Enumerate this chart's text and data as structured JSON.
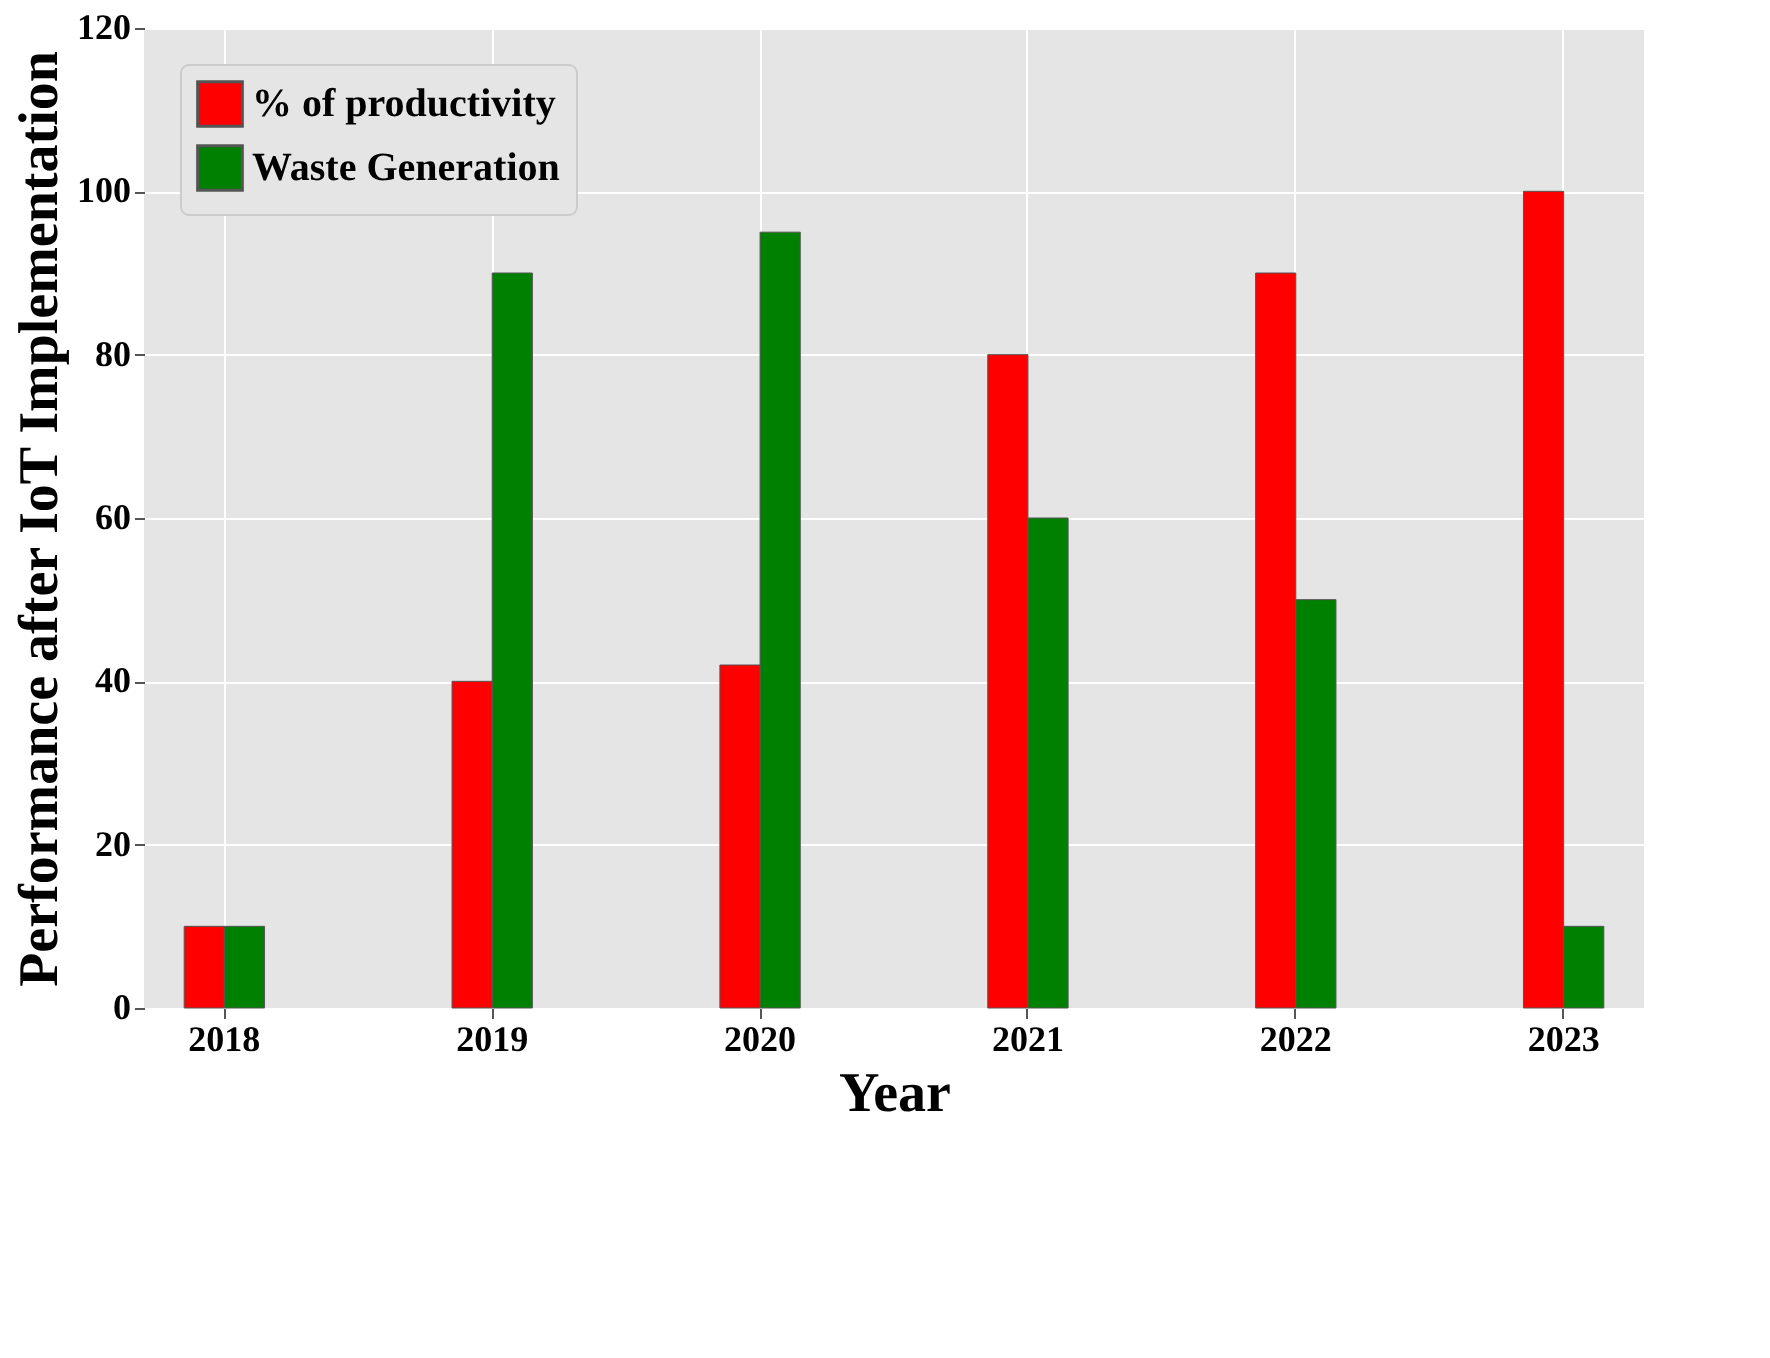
{
  "chart_data": {
    "type": "bar",
    "xlabel": "Year",
    "ylabel": "Performance after IoT Implementation",
    "categories": [
      "2018",
      "2019",
      "2020",
      "2021",
      "2022",
      "2023"
    ],
    "series": [
      {
        "name": "% of productivity",
        "color": "#ff0000",
        "values": [
          10,
          40,
          42,
          80,
          90,
          100
        ]
      },
      {
        "name": "Waste Generation",
        "color": "#008000",
        "values": [
          10,
          90,
          95,
          60,
          50,
          10
        ]
      }
    ],
    "ylim": [
      0,
      120
    ],
    "yticks": [
      0,
      20,
      40,
      60,
      80,
      100,
      120
    ],
    "grid": true,
    "legend": "top left"
  }
}
